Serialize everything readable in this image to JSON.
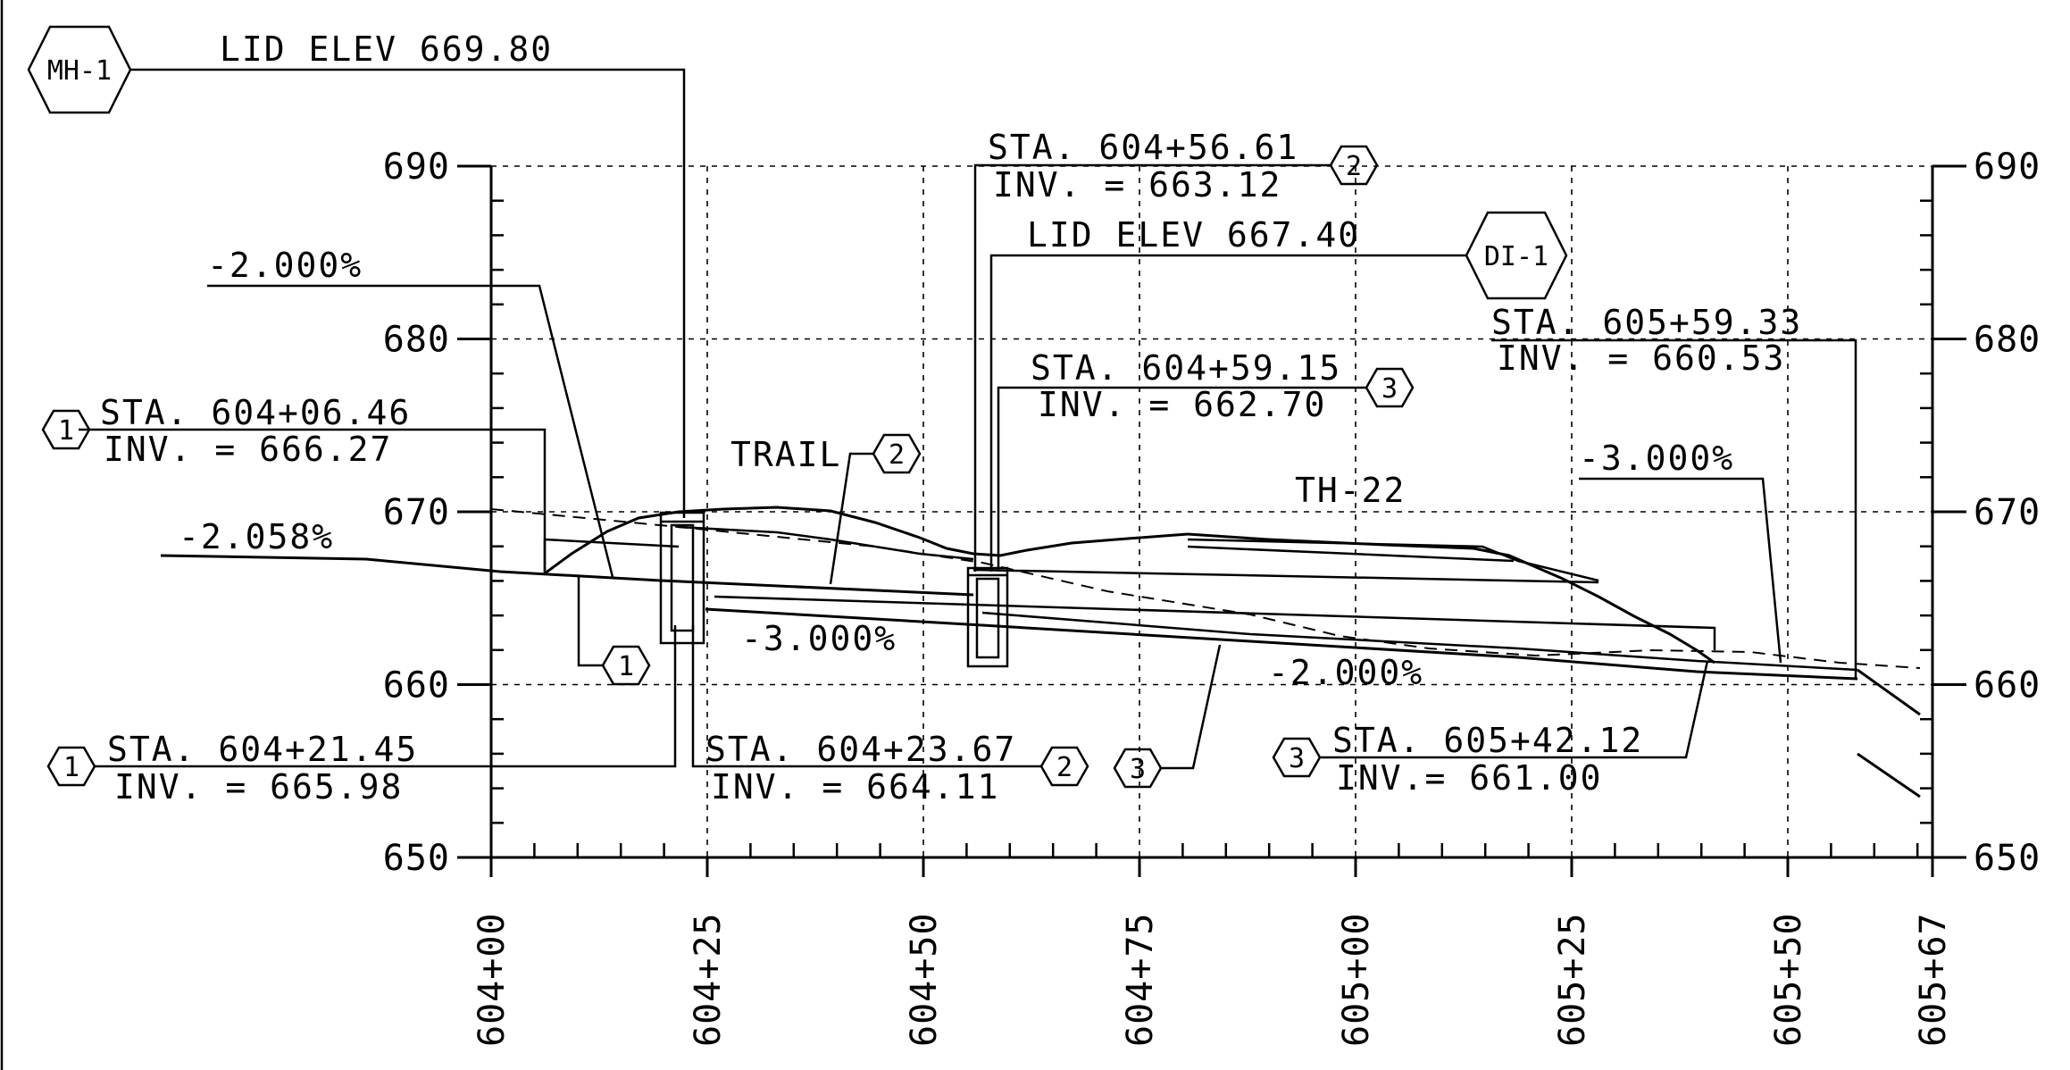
{
  "chart_data": {
    "type": "profile",
    "xlabels": [
      "604+00",
      "604+25",
      "604+50",
      "604+75",
      "605+00",
      "605+25",
      "605+50",
      "605+67"
    ],
    "ylabels": [
      "690",
      "680",
      "670",
      "660",
      "650"
    ],
    "ylim": [
      650,
      690
    ],
    "grid": true,
    "surface_labels": {
      "trail": "TRAIL",
      "highway": "TH-22"
    },
    "slopes": [
      "-2.000%",
      "-2.058%",
      "-3.000%",
      "-2.000%",
      "-3.000%"
    ],
    "structures": [
      {
        "tag": "MH-1",
        "lid": "LID ELEV 669.80"
      },
      {
        "tag": "DI-1",
        "lid": "LID ELEV 667.40"
      }
    ],
    "pipe_tags": [
      "1",
      "1",
      "2",
      "2",
      "3",
      "3",
      "1",
      "2",
      "3"
    ],
    "callouts": [
      {
        "sta": "STA.  604+06.46",
        "inv": "INV.  =  666.27"
      },
      {
        "sta": "STA.  604+21.45",
        "inv": "INV.  =  665.98"
      },
      {
        "sta": "STA.  604+23.67",
        "inv": "INV.  =  664.11"
      },
      {
        "sta": "STA.  604+56.61",
        "inv": "INV.  =  663.12"
      },
      {
        "sta": "STA.  604+59.15",
        "inv": "INV.  =  662.70"
      },
      {
        "sta": "STA.  605+42.12",
        "inv": "INV.=  661.00"
      },
      {
        "sta": "STA.  605+59.33",
        "inv": "INV.  =  660.53"
      }
    ]
  }
}
